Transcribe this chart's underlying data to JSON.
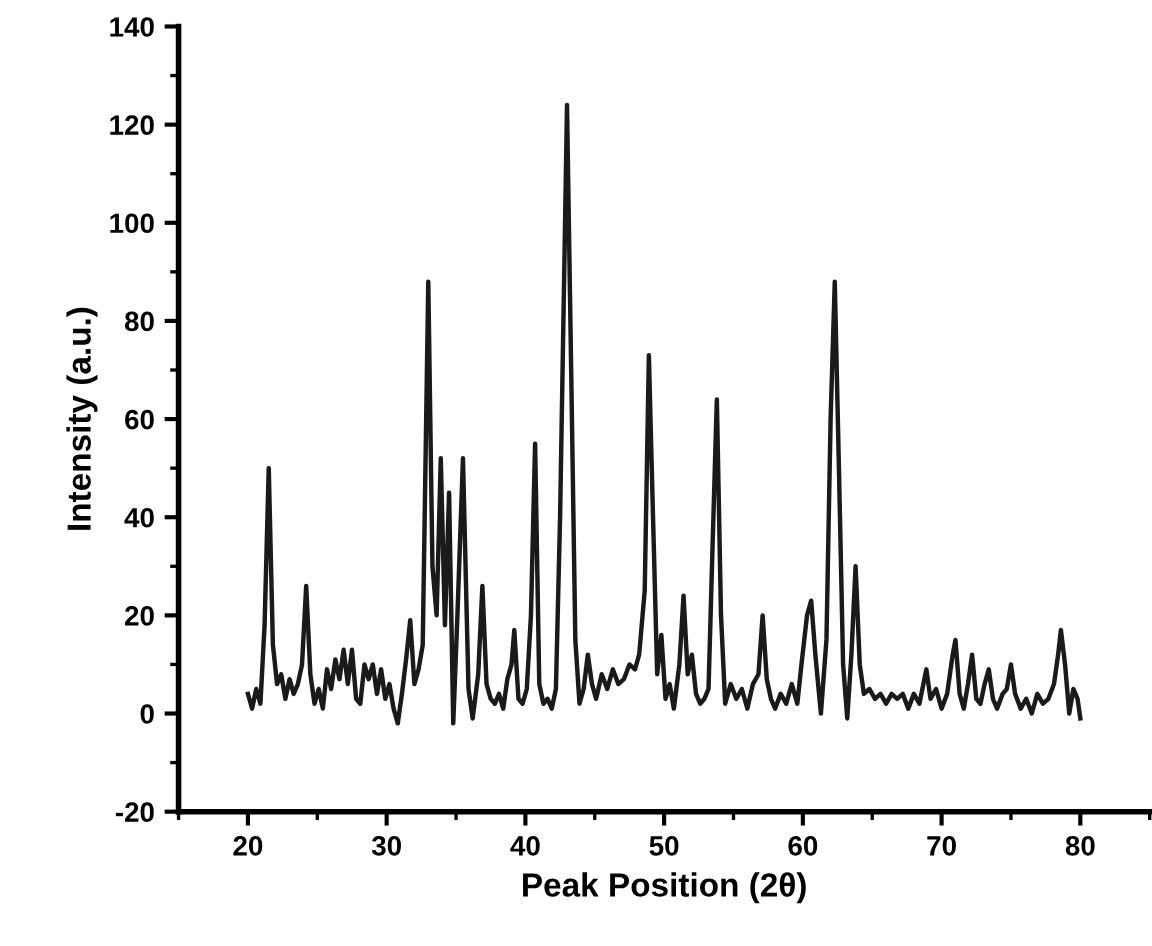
{
  "chart_data": {
    "type": "line",
    "xlabel": "Peak Position (2θ)",
    "ylabel": "Intensity (a.u.)",
    "xlim": [
      15,
      85
    ],
    "xticks": [
      20,
      30,
      40,
      50,
      60,
      70,
      80
    ],
    "ylim": [
      -20,
      140
    ],
    "yticks": [
      -20,
      0,
      20,
      40,
      60,
      80,
      100,
      120,
      140
    ],
    "grid": false,
    "line_style": "solid",
    "marker": "none",
    "series": [
      {
        "color": "#1a1a1a",
        "x": [
          20.0,
          20.3,
          20.6,
          20.9,
          21.2,
          21.5,
          21.8,
          22.1,
          22.4,
          22.7,
          23.0,
          23.3,
          23.6,
          23.9,
          24.2,
          24.5,
          24.8,
          25.1,
          25.4,
          25.7,
          26.0,
          26.3,
          26.6,
          26.9,
          27.2,
          27.5,
          27.8,
          28.1,
          28.4,
          28.7,
          29.0,
          29.3,
          29.6,
          29.9,
          30.2,
          30.5,
          30.8,
          31.1,
          31.4,
          31.7,
          32.0,
          32.3,
          32.6,
          33.0,
          33.3,
          33.6,
          33.9,
          34.2,
          34.5,
          34.8,
          35.1,
          35.5,
          35.9,
          36.2,
          36.6,
          36.9,
          37.2,
          37.5,
          37.8,
          38.1,
          38.4,
          38.7,
          39.0,
          39.2,
          39.5,
          39.8,
          40.1,
          40.4,
          40.7,
          41.0,
          41.3,
          41.6,
          41.9,
          42.2,
          42.5,
          42.8,
          43.0,
          43.3,
          43.6,
          43.9,
          44.2,
          44.5,
          44.8,
          45.1,
          45.5,
          45.9,
          46.3,
          46.7,
          47.1,
          47.5,
          47.9,
          48.2,
          48.6,
          48.9,
          49.2,
          49.5,
          49.8,
          50.1,
          50.4,
          50.7,
          51.1,
          51.4,
          51.7,
          52.0,
          52.3,
          52.6,
          52.9,
          53.2,
          53.5,
          53.8,
          54.1,
          54.4,
          54.8,
          55.2,
          55.6,
          56.0,
          56.4,
          56.8,
          57.1,
          57.4,
          57.7,
          58.0,
          58.4,
          58.8,
          59.2,
          59.6,
          59.9,
          60.3,
          60.6,
          60.9,
          61.3,
          61.7,
          62.0,
          62.3,
          62.6,
          62.9,
          63.2,
          63.5,
          63.8,
          64.1,
          64.4,
          64.8,
          65.2,
          65.6,
          66.0,
          66.4,
          66.8,
          67.2,
          67.6,
          68.0,
          68.4,
          68.9,
          69.2,
          69.6,
          70.0,
          70.4,
          70.8,
          71.0,
          71.3,
          71.6,
          71.9,
          72.2,
          72.5,
          72.8,
          73.1,
          73.4,
          73.7,
          74.0,
          74.4,
          74.7,
          75.0,
          75.3,
          75.7,
          76.1,
          76.5,
          76.9,
          77.3,
          77.7,
          78.1,
          78.4,
          78.6,
          78.9,
          79.2,
          79.5,
          79.8,
          80.0
        ],
        "values": [
          4,
          1,
          5,
          2,
          18,
          50,
          14,
          6,
          8,
          3,
          7,
          4,
          6,
          10,
          26,
          8,
          2,
          5,
          1,
          9,
          5,
          11,
          7,
          13,
          6,
          13,
          3,
          2,
          10,
          7,
          10,
          4,
          9,
          3,
          6,
          1,
          -2,
          4,
          11,
          19,
          6,
          9,
          14,
          88,
          30,
          20,
          52,
          18,
          45,
          -2,
          20,
          52,
          5,
          -1,
          8,
          26,
          6,
          3,
          2,
          4,
          1,
          7,
          10,
          17,
          3,
          2,
          5,
          20,
          55,
          6,
          2,
          3,
          1,
          5,
          40,
          90,
          124,
          70,
          15,
          2,
          5,
          12,
          6,
          3,
          8,
          5,
          9,
          6,
          7,
          10,
          9,
          12,
          25,
          73,
          40,
          8,
          16,
          3,
          6,
          1,
          10,
          24,
          8,
          12,
          4,
          2,
          3,
          5,
          35,
          64,
          20,
          2,
          6,
          3,
          5,
          1,
          6,
          8,
          20,
          7,
          3,
          1,
          4,
          2,
          6,
          2,
          10,
          20,
          23,
          12,
          0,
          15,
          60,
          88,
          50,
          10,
          -1,
          12,
          30,
          10,
          4,
          5,
          3,
          4,
          2,
          4,
          3,
          4,
          1,
          4,
          2,
          9,
          3,
          5,
          1,
          4,
          12,
          15,
          4,
          1,
          6,
          12,
          3,
          2,
          6,
          9,
          3,
          1,
          4,
          5,
          10,
          4,
          1,
          3,
          0,
          4,
          2,
          3,
          6,
          12,
          17,
          10,
          0,
          5,
          3,
          -1
        ]
      }
    ]
  }
}
